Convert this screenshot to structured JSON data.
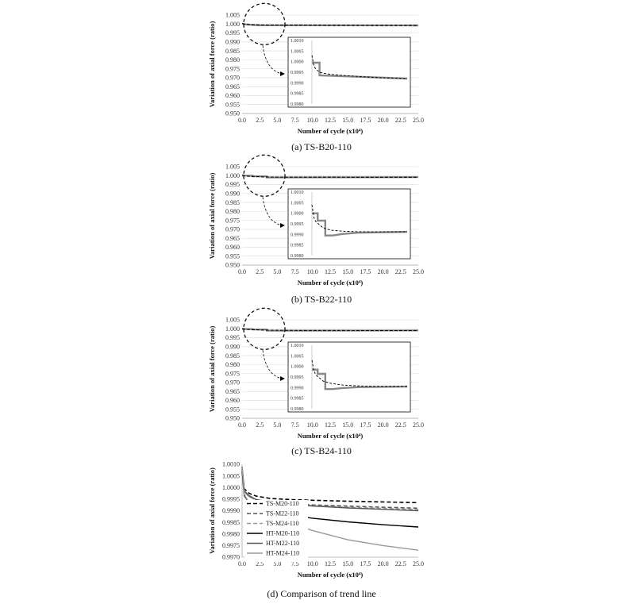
{
  "chart_data": [
    {
      "type": "line",
      "caption": "(a)  TS-B20-110",
      "xlabel": "Number of cycle (x10⁴)",
      "ylabel": "Variation of axial force (ratio)",
      "xlim": [
        0,
        25
      ],
      "ylim": [
        0.95,
        1.005
      ],
      "x_ticks": [
        "0.0",
        "2.5",
        "5.0",
        "7.5",
        "10.0",
        "12.5",
        "15.0",
        "17.5",
        "20.0",
        "22.5",
        "25.0"
      ],
      "y_ticks": [
        "1.005",
        "1.000",
        "0.995",
        "0.990",
        "0.985",
        "0.980",
        "0.975",
        "0.970",
        "0.965",
        "0.960",
        "0.955",
        "0.950"
      ],
      "grid": "horizontal",
      "series": [
        {
          "style": "measured-step-gray",
          "x": [
            0,
            0.5,
            1.5,
            2.5,
            25
          ],
          "y": [
            1.0002,
            0.99985,
            0.9995,
            0.9993,
            0.9992
          ]
        },
        {
          "style": "trend-dashed-black",
          "x": [
            0,
            0.5,
            1,
            2,
            3,
            5,
            8,
            12,
            17,
            25
          ],
          "y": [
            1.0003,
            0.9998,
            0.99965,
            0.9995,
            0.99945,
            0.9994,
            0.99935,
            0.9993,
            0.99925,
            0.9992
          ]
        }
      ],
      "inset": {
        "xlim": [
          0,
          25
        ],
        "ylim": [
          0.998,
          1.001
        ],
        "y_ticks": [
          "1.0010",
          "1.0005",
          "1.0000",
          "0.9995",
          "0.9990",
          "0.9985",
          "0.9980"
        ],
        "step": {
          "x": [
            0,
            2,
            2,
            25
          ],
          "y": [
            0.99995,
            0.99995,
            0.99935,
            0.9992
          ]
        },
        "trend": {
          "x": [
            0,
            0.5,
            1,
            2,
            3,
            5,
            8,
            12,
            17,
            25
          ],
          "y": [
            1.0003,
            0.9998,
            0.99965,
            0.9995,
            0.99945,
            0.9994,
            0.99935,
            0.9993,
            0.99925,
            0.9992
          ]
        }
      }
    },
    {
      "type": "line",
      "caption": "(b)  TS-B22-110",
      "xlabel": "Number of cycle (x10⁴)",
      "ylabel": "Variation of axial force (ratio)",
      "xlim": [
        0,
        25
      ],
      "ylim": [
        0.95,
        1.005
      ],
      "x_ticks": [
        "0.0",
        "2.5",
        "5.0",
        "7.5",
        "10.0",
        "12.5",
        "15.0",
        "17.5",
        "20.0",
        "22.5",
        "25.0"
      ],
      "y_ticks": [
        "1.005",
        "1.000",
        "0.995",
        "0.990",
        "0.985",
        "0.980",
        "0.975",
        "0.970",
        "0.965",
        "0.960",
        "0.955",
        "0.950"
      ],
      "grid": "horizontal",
      "series": [
        {
          "style": "measured-step-gray",
          "x": [
            0,
            1.5,
            1.5,
            3.5,
            3.5,
            25
          ],
          "y": [
            1.0,
            1.0,
            0.99965,
            0.99965,
            0.99895,
            0.99915
          ]
        },
        {
          "style": "trend-dashed-black",
          "x": [
            0,
            0.5,
            1,
            2,
            3,
            5,
            8,
            12,
            17,
            25
          ],
          "y": [
            1.0004,
            0.9998,
            0.9996,
            0.99945,
            0.9993,
            0.9992,
            0.99915,
            0.99913,
            0.99912,
            0.99912
          ]
        }
      ],
      "inset": {
        "xlim": [
          0,
          25
        ],
        "ylim": [
          0.998,
          1.001
        ],
        "y_ticks": [
          "1.0010",
          "1.0005",
          "1.0000",
          "0.9995",
          "0.9990",
          "0.9985",
          "0.9980"
        ],
        "step": {
          "x": [
            0,
            1.5,
            1.5,
            3.5,
            3.5,
            5.5,
            8,
            12,
            25
          ],
          "y": [
            1.0,
            1.0,
            0.99965,
            0.99965,
            0.99895,
            0.99895,
            0.99902,
            0.99908,
            0.99912
          ]
        },
        "trend": {
          "x": [
            0,
            0.5,
            1,
            2,
            3,
            5,
            8,
            12,
            17,
            25
          ],
          "y": [
            1.0004,
            0.9998,
            0.9996,
            0.99945,
            0.9993,
            0.9992,
            0.99915,
            0.99913,
            0.99912,
            0.99912
          ]
        }
      }
    },
    {
      "type": "line",
      "caption": "(c)  TS-B24-110",
      "xlabel": "Number of cycle (x10⁴)",
      "ylabel": "Variation of axial force (ratio)",
      "xlim": [
        0,
        25
      ],
      "ylim": [
        0.95,
        1.005
      ],
      "x_ticks": [
        "0.0",
        "2.5",
        "5.0",
        "7.5",
        "10.0",
        "12.5",
        "15.0",
        "17.5",
        "20.0",
        "22.5",
        "25.0"
      ],
      "y_ticks": [
        "1.005",
        "1.000",
        "0.995",
        "0.990",
        "0.985",
        "0.980",
        "0.975",
        "0.970",
        "0.965",
        "0.960",
        "0.955",
        "0.950"
      ],
      "grid": "horizontal",
      "series": [
        {
          "style": "measured-step-gray",
          "x": [
            0,
            1.5,
            1.5,
            3.5,
            3.5,
            25
          ],
          "y": [
            0.99985,
            0.99985,
            0.99965,
            0.99965,
            0.99893,
            0.99905
          ]
        },
        {
          "style": "trend-dashed-black",
          "x": [
            0,
            0.5,
            1,
            2,
            3,
            5,
            8,
            12,
            17,
            25
          ],
          "y": [
            1.0003,
            0.9998,
            0.9996,
            0.99945,
            0.9993,
            0.9992,
            0.99912,
            0.99908,
            0.99906,
            0.99905
          ]
        }
      ],
      "inset": {
        "xlim": [
          0,
          25
        ],
        "ylim": [
          0.998,
          1.001
        ],
        "y_ticks": [
          "1.0010",
          "1.0005",
          "1.0000",
          "0.9995",
          "0.9990",
          "0.9985",
          "0.9980"
        ],
        "step": {
          "x": [
            0,
            1.5,
            1.5,
            3.5,
            3.5,
            5.5,
            8,
            12,
            25
          ],
          "y": [
            0.99985,
            0.99985,
            0.99965,
            0.99965,
            0.99893,
            0.99893,
            0.99898,
            0.99902,
            0.99905
          ]
        },
        "trend": {
          "x": [
            0,
            0.5,
            1,
            2,
            3,
            5,
            8,
            12,
            17,
            25
          ],
          "y": [
            1.0003,
            0.9998,
            0.9996,
            0.99945,
            0.9993,
            0.9992,
            0.99912,
            0.99908,
            0.99906,
            0.99905
          ]
        }
      }
    },
    {
      "type": "line",
      "caption": "(d)  Comparison  of  trend  line",
      "xlabel": "Number of cycle (x10⁴)",
      "ylabel": "Variation of axial force (ratio)",
      "xlim": [
        0,
        25
      ],
      "ylim": [
        0.997,
        1.001
      ],
      "x_ticks": [
        "0.0",
        "2.5",
        "5.0",
        "7.5",
        "10.0",
        "12.5",
        "15.0",
        "17.5",
        "20.0",
        "22.5",
        "25.0"
      ],
      "y_ticks": [
        "1.0010",
        "1.0005",
        "1.0000",
        "0.9995",
        "0.9990",
        "0.9985",
        "0.9980",
        "0.9975",
        "0.9970"
      ],
      "grid": "none",
      "legend_position": "left",
      "series": [
        {
          "name": "TS-M20-110",
          "color": "#000000",
          "dash": "5,3",
          "width": 1.6,
          "x": [
            0,
            0.3,
            1,
            2,
            4,
            7,
            10,
            15,
            20,
            25
          ],
          "y": [
            1.0008,
            0.99995,
            0.99975,
            0.99963,
            0.99953,
            0.99948,
            0.99945,
            0.99941,
            0.99938,
            0.99935
          ]
        },
        {
          "name": "TS-M22-110",
          "color": "#555555",
          "dash": "5,3",
          "width": 1.6,
          "x": [
            0,
            0.3,
            1,
            2,
            4,
            7,
            10,
            15,
            20,
            25
          ],
          "y": [
            1.0009,
            0.99985,
            0.99962,
            0.99948,
            0.99937,
            0.9993,
            0.99925,
            0.9992,
            0.99915,
            0.99911
          ]
        },
        {
          "name": "TS-M24-110",
          "color": "#999999",
          "dash": "5,3",
          "width": 1.6,
          "x": [
            0,
            0.3,
            1,
            2,
            4,
            7,
            10,
            15,
            20,
            25
          ],
          "y": [
            1.0008,
            0.9998,
            0.9996,
            0.99947,
            0.99935,
            0.99928,
            0.99922,
            0.99915,
            0.9991,
            0.99905
          ]
        },
        {
          "name": "HT-M20-110",
          "color": "#000000",
          "dash": "",
          "width": 1.4,
          "x": [
            0,
            0.3,
            1,
            2,
            4,
            7,
            10,
            15,
            20,
            25
          ],
          "y": [
            1.0007,
            0.99965,
            0.99935,
            0.99915,
            0.99895,
            0.9988,
            0.99868,
            0.99852,
            0.9984,
            0.9983
          ]
        },
        {
          "name": "HT-M22-110",
          "color": "#555555",
          "dash": "",
          "width": 1.4,
          "x": [
            0,
            0.3,
            1,
            2,
            4,
            7,
            10,
            15,
            20,
            25
          ],
          "y": [
            1.0009,
            0.99985,
            0.99965,
            0.99948,
            0.99937,
            0.99928,
            0.9992,
            0.99912,
            0.99906,
            0.999
          ]
        },
        {
          "name": "HT-M24-110",
          "color": "#999999",
          "dash": "",
          "width": 1.4,
          "x": [
            0,
            0.3,
            1,
            2,
            4,
            7,
            10,
            15,
            20,
            25
          ],
          "y": [
            1.0009,
            0.9997,
            0.99935,
            0.99905,
            0.99875,
            0.99845,
            0.99815,
            0.99775,
            0.9975,
            0.9973
          ]
        }
      ]
    }
  ]
}
